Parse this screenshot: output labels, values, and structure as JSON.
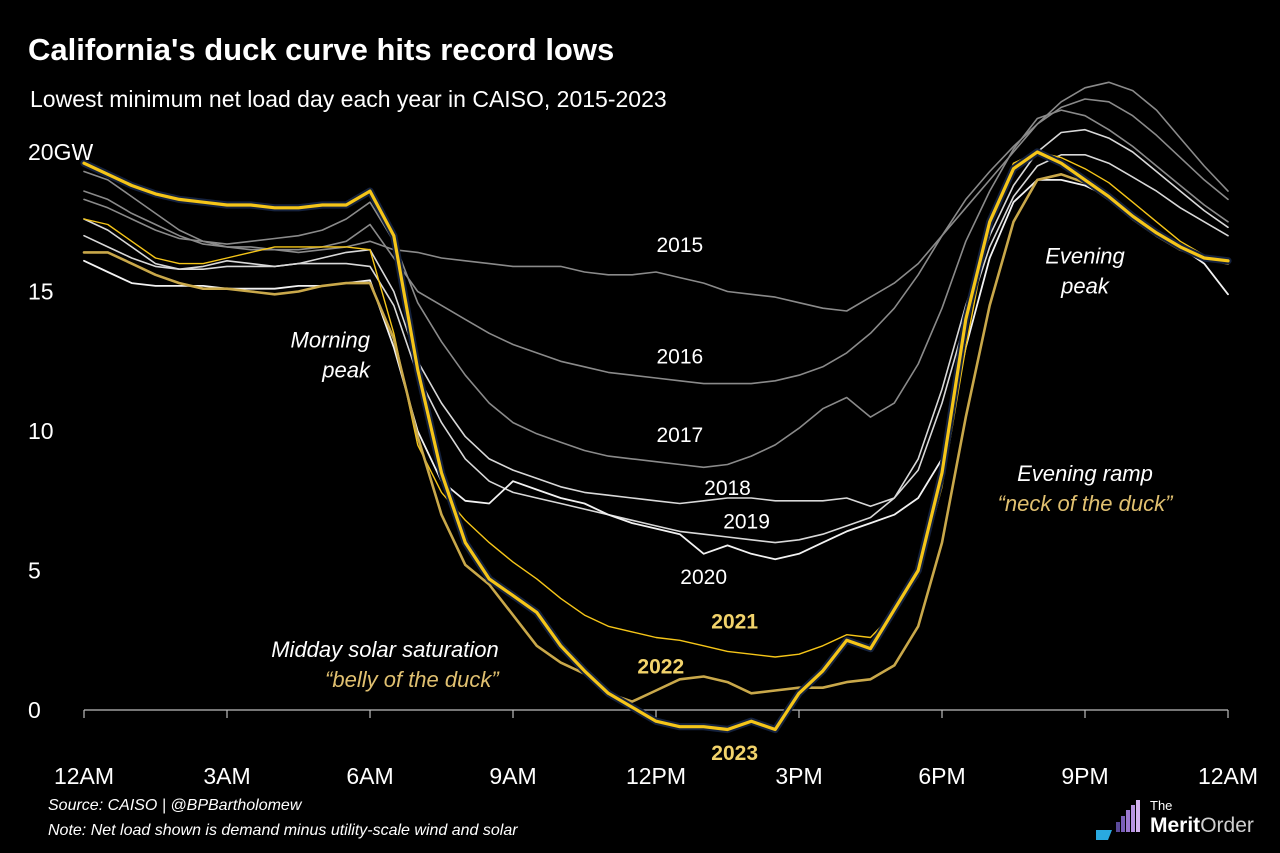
{
  "header": {
    "title": "California's duck curve hits record lows",
    "subtitle": "Lowest minimum net load day each year in CAISO, 2015-2023"
  },
  "footer": {
    "source": "Source: CAISO | @BPBartholomew",
    "note": "Note: Net load shown is demand minus utility-scale wind and solar"
  },
  "logo": {
    "the": "The",
    "merit": "Merit",
    "order": "Order"
  },
  "colors": {
    "background": "#000000",
    "gray_lines": "#8a8a8a",
    "light_lines": "#d8d8d8",
    "yellow": "#f5c518",
    "gold": "#c9a84a",
    "label_yellow": "#f2d36b",
    "label_gold": "#e0c070",
    "navy_outline": "#14213d"
  },
  "chart_data": {
    "type": "line",
    "ylim": [
      0,
      20
    ],
    "xlim": [
      0,
      24
    ],
    "ylabel_top": "20GW",
    "y_ticks": [
      {
        "value": 20,
        "label": "20GW"
      },
      {
        "value": 15,
        "label": "15"
      },
      {
        "value": 10,
        "label": "10"
      },
      {
        "value": 5,
        "label": "5"
      },
      {
        "value": 0,
        "label": "0"
      }
    ],
    "x_ticks": [
      {
        "value": 0,
        "label": "12AM"
      },
      {
        "value": 3,
        "label": "3AM"
      },
      {
        "value": 6,
        "label": "6AM"
      },
      {
        "value": 9,
        "label": "9AM"
      },
      {
        "value": 12,
        "label": "12PM"
      },
      {
        "value": 15,
        "label": "3PM"
      },
      {
        "value": 18,
        "label": "6PM"
      },
      {
        "value": 21,
        "label": "9PM"
      },
      {
        "value": 24,
        "label": "12AM"
      }
    ],
    "series": [
      {
        "name": "2015",
        "style": "gray",
        "label": {
          "text": "2015",
          "x": 12.5,
          "y": 16.7
        },
        "x": [
          0,
          0.5,
          1,
          1.5,
          2,
          2.5,
          3,
          3.5,
          4,
          4.5,
          5,
          5.5,
          6,
          6.5,
          7,
          7.5,
          8,
          8.5,
          9,
          9.5,
          10,
          10.5,
          11,
          11.5,
          12,
          12.5,
          13,
          13.5,
          14,
          14.5,
          15,
          15.5,
          16,
          16.5,
          17,
          17.5,
          18,
          18.5,
          19,
          19.5,
          20,
          20.5,
          21,
          21.5,
          22,
          22.5,
          23,
          23.5,
          24
        ],
        "y": [
          19.3,
          19.0,
          18.4,
          17.8,
          17.2,
          16.8,
          16.6,
          16.5,
          16.5,
          16.4,
          16.5,
          16.6,
          16.8,
          16.5,
          16.4,
          16.2,
          16.1,
          16.0,
          15.9,
          15.9,
          15.9,
          15.7,
          15.6,
          15.6,
          15.7,
          15.5,
          15.3,
          15.0,
          14.9,
          14.8,
          14.6,
          14.4,
          14.3,
          14.8,
          15.3,
          16.0,
          17.0,
          18.0,
          19.0,
          20.0,
          21.0,
          21.8,
          22.3,
          22.5,
          22.2,
          21.5,
          20.5,
          19.5,
          18.6
        ]
      },
      {
        "name": "2016",
        "style": "gray",
        "label": {
          "text": "2016",
          "x": 12.5,
          "y": 12.7
        },
        "x": [
          0,
          0.5,
          1,
          1.5,
          2,
          2.5,
          3,
          3.5,
          4,
          4.5,
          5,
          5.5,
          6,
          6.5,
          7,
          7.5,
          8,
          8.5,
          9,
          9.5,
          10,
          10.5,
          11,
          11.5,
          12,
          12.5,
          13,
          13.5,
          14,
          14.5,
          15,
          15.5,
          16,
          16.5,
          17,
          17.5,
          18,
          18.5,
          19,
          19.5,
          20,
          20.5,
          21,
          21.5,
          22,
          22.5,
          23,
          23.5,
          24
        ],
        "y": [
          18.6,
          18.3,
          17.8,
          17.4,
          17.0,
          16.7,
          16.6,
          16.6,
          16.5,
          16.5,
          16.6,
          16.8,
          17.4,
          16.2,
          15.0,
          14.5,
          14.0,
          13.5,
          13.1,
          12.8,
          12.5,
          12.3,
          12.1,
          12.0,
          11.9,
          11.8,
          11.7,
          11.7,
          11.7,
          11.8,
          12.0,
          12.3,
          12.8,
          13.5,
          14.4,
          15.6,
          17.0,
          18.3,
          19.3,
          20.2,
          21.0,
          21.6,
          21.9,
          21.8,
          21.3,
          20.6,
          19.8,
          19.0,
          18.3
        ]
      },
      {
        "name": "2017",
        "style": "gray",
        "label": {
          "text": "2017",
          "x": 12.5,
          "y": 9.9
        },
        "x": [
          0,
          0.5,
          1,
          1.5,
          2,
          2.5,
          3,
          3.5,
          4,
          4.5,
          5,
          5.5,
          6,
          6.5,
          7,
          7.5,
          8,
          8.5,
          9,
          9.5,
          10,
          10.5,
          11,
          11.5,
          12,
          12.5,
          13,
          13.5,
          14,
          14.5,
          15,
          15.5,
          16,
          16.5,
          17,
          17.5,
          18,
          18.5,
          19,
          19.5,
          20,
          20.5,
          21,
          21.5,
          22,
          22.5,
          23,
          23.5,
          24
        ],
        "y": [
          18.3,
          18.0,
          17.6,
          17.2,
          16.9,
          16.8,
          16.7,
          16.8,
          16.9,
          17.0,
          17.2,
          17.6,
          18.2,
          16.8,
          14.6,
          13.2,
          12.0,
          11.0,
          10.3,
          9.9,
          9.6,
          9.3,
          9.1,
          9.0,
          8.9,
          8.8,
          8.7,
          8.8,
          9.1,
          9.5,
          10.1,
          10.8,
          11.2,
          10.5,
          11.0,
          12.4,
          14.4,
          16.8,
          18.6,
          20.1,
          21.2,
          21.5,
          21.3,
          20.8,
          20.2,
          19.5,
          18.8,
          18.1,
          17.5
        ]
      },
      {
        "name": "2018",
        "style": "light",
        "label": {
          "text": "2018",
          "x": 13.5,
          "y": 8.0
        },
        "x": [
          0,
          0.5,
          1,
          1.5,
          2,
          2.5,
          3,
          3.5,
          4,
          4.5,
          5,
          5.5,
          6,
          6.5,
          7,
          7.5,
          8,
          8.5,
          9,
          9.5,
          10,
          10.5,
          11,
          11.5,
          12,
          12.5,
          13,
          13.5,
          14,
          14.5,
          15,
          15.5,
          16,
          16.5,
          17,
          17.5,
          18,
          18.5,
          19,
          19.5,
          20,
          20.5,
          21,
          21.5,
          22,
          22.5,
          23,
          23.5,
          24
        ],
        "y": [
          17.6,
          17.2,
          16.6,
          16.0,
          15.8,
          15.9,
          16.1,
          16.0,
          15.9,
          16.0,
          16.2,
          16.4,
          16.5,
          15.0,
          12.5,
          11.0,
          9.8,
          9.0,
          8.6,
          8.3,
          8.0,
          7.8,
          7.7,
          7.6,
          7.5,
          7.4,
          7.5,
          7.6,
          7.6,
          7.5,
          7.5,
          7.5,
          7.6,
          7.3,
          7.6,
          9.0,
          11.5,
          14.5,
          17.0,
          18.8,
          20.0,
          20.7,
          20.8,
          20.5,
          20.0,
          19.3,
          18.6,
          17.9,
          17.3
        ]
      },
      {
        "name": "2019",
        "style": "light",
        "label": {
          "text": "2019",
          "x": 13.9,
          "y": 6.8
        },
        "x": [
          0,
          0.5,
          1,
          1.5,
          2,
          2.5,
          3,
          3.5,
          4,
          4.5,
          5,
          5.5,
          6,
          6.5,
          7,
          7.5,
          8,
          8.5,
          9,
          9.5,
          10,
          10.5,
          11,
          11.5,
          12,
          12.5,
          13,
          13.5,
          14,
          14.5,
          15,
          15.5,
          16,
          16.5,
          17,
          17.5,
          18,
          18.5,
          19,
          19.5,
          20,
          20.5,
          21,
          21.5,
          22,
          22.5,
          23,
          23.5,
          24
        ],
        "y": [
          17.0,
          16.6,
          16.2,
          15.9,
          15.8,
          15.8,
          15.9,
          15.9,
          15.9,
          16.0,
          16.0,
          16.0,
          15.9,
          14.5,
          12.0,
          10.3,
          9.0,
          8.2,
          7.8,
          7.6,
          7.4,
          7.2,
          7.0,
          6.8,
          6.6,
          6.4,
          6.3,
          6.2,
          6.1,
          6.0,
          6.1,
          6.3,
          6.6,
          6.9,
          7.6,
          8.6,
          11.0,
          14.0,
          16.6,
          18.4,
          19.5,
          19.9,
          19.9,
          19.6,
          19.1,
          18.6,
          18.0,
          17.5,
          17.0
        ]
      },
      {
        "name": "2020",
        "style": "white",
        "label": {
          "text": "2020",
          "x": 13.0,
          "y": 4.8
        },
        "x": [
          0,
          0.5,
          1,
          1.5,
          2,
          2.5,
          3,
          3.5,
          4,
          4.5,
          5,
          5.5,
          6,
          6.5,
          7,
          7.5,
          8,
          8.5,
          9,
          9.5,
          10,
          10.5,
          11,
          11.5,
          12,
          12.5,
          13,
          13.5,
          14,
          14.5,
          15,
          15.5,
          16,
          16.5,
          17,
          17.5,
          18,
          18.5,
          19,
          19.5,
          20,
          20.5,
          21,
          21.5,
          22,
          22.5,
          23,
          23.5,
          24
        ],
        "y": [
          16.1,
          15.7,
          15.3,
          15.2,
          15.2,
          15.2,
          15.1,
          15.1,
          15.1,
          15.2,
          15.2,
          15.3,
          15.4,
          13.0,
          10.0,
          8.2,
          7.5,
          7.4,
          8.2,
          7.9,
          7.6,
          7.4,
          7.0,
          6.7,
          6.5,
          6.3,
          5.6,
          5.9,
          5.6,
          5.4,
          5.6,
          6.0,
          6.4,
          6.7,
          7.0,
          7.6,
          9.0,
          13.0,
          16.2,
          18.2,
          19.0,
          19.0,
          18.8,
          18.4,
          17.8,
          17.2,
          16.6,
          16.0,
          14.9
        ]
      },
      {
        "name": "2021",
        "style": "yellow_thin",
        "label": {
          "text": "2021",
          "x": 13.65,
          "y": 3.2
        },
        "x": [
          0,
          0.5,
          1,
          1.5,
          2,
          2.5,
          3,
          3.5,
          4,
          4.5,
          5,
          5.5,
          6,
          6.5,
          7,
          7.5,
          8,
          8.5,
          9,
          9.5,
          10,
          10.5,
          11,
          11.5,
          12,
          12.5,
          13,
          13.5,
          14,
          14.5,
          15,
          15.5,
          16,
          16.5,
          17,
          17.5,
          18,
          18.5,
          19,
          19.5,
          20,
          20.5,
          21,
          21.5,
          22,
          22.5,
          23,
          23.5,
          24
        ],
        "y": [
          17.6,
          17.4,
          16.8,
          16.2,
          16.0,
          16.0,
          16.2,
          16.4,
          16.6,
          16.6,
          16.6,
          16.6,
          16.5,
          13.5,
          9.5,
          7.8,
          6.8,
          6.0,
          5.3,
          4.7,
          4.0,
          3.4,
          3.0,
          2.8,
          2.6,
          2.5,
          2.3,
          2.1,
          2.0,
          1.9,
          2.0,
          2.3,
          2.7,
          2.6,
          3.5,
          4.8,
          8.0,
          13.0,
          17.5,
          19.6,
          20.0,
          19.8,
          19.4,
          18.9,
          18.2,
          17.5,
          16.8,
          16.3,
          16.0
        ]
      },
      {
        "name": "2022",
        "style": "gold",
        "label": {
          "text": "2022",
          "x": 12.1,
          "y": 1.6
        },
        "x": [
          0,
          0.5,
          1,
          1.5,
          2,
          2.5,
          3,
          3.5,
          4,
          4.5,
          5,
          5.5,
          6,
          6.5,
          7,
          7.5,
          8,
          8.5,
          9,
          9.5,
          10,
          10.5,
          11,
          11.5,
          12,
          12.5,
          13,
          13.5,
          14,
          14.5,
          15,
          15.5,
          16,
          16.5,
          17,
          17.5,
          18,
          18.5,
          19,
          19.5,
          20,
          20.5,
          21,
          21.5,
          22,
          22.5,
          23,
          23.5,
          24
        ],
        "y": [
          16.4,
          16.4,
          16.0,
          15.6,
          15.3,
          15.1,
          15.1,
          15.0,
          14.9,
          15.0,
          15.2,
          15.3,
          15.3,
          13.3,
          9.8,
          7.0,
          5.2,
          4.5,
          3.4,
          2.3,
          1.7,
          1.3,
          0.6,
          0.3,
          0.7,
          1.1,
          1.2,
          1.0,
          0.6,
          0.7,
          0.8,
          0.8,
          1.0,
          1.1,
          1.6,
          3.0,
          6.0,
          10.5,
          14.5,
          17.5,
          19.0,
          19.2,
          18.9,
          18.3,
          17.6,
          17.0,
          16.5,
          16.2,
          16.0
        ]
      },
      {
        "name": "2023",
        "style": "yellow_bold",
        "label": {
          "text": "2023",
          "x": 13.65,
          "y": -1.5
        },
        "x": [
          0,
          0.5,
          1,
          1.5,
          2,
          2.5,
          3,
          3.5,
          4,
          4.5,
          5,
          5.5,
          6,
          6.5,
          7,
          7.5,
          8,
          8.5,
          9,
          9.5,
          10,
          10.5,
          11,
          11.5,
          12,
          12.5,
          13,
          13.5,
          14,
          14.5,
          15,
          15.5,
          16,
          16.5,
          17,
          17.5,
          18,
          18.5,
          19,
          19.5,
          20,
          20.5,
          21,
          21.5,
          22,
          22.5,
          23,
          23.5,
          24
        ],
        "y": [
          19.6,
          19.2,
          18.8,
          18.5,
          18.3,
          18.2,
          18.1,
          18.1,
          18.0,
          18.0,
          18.1,
          18.1,
          18.6,
          17.0,
          12.2,
          8.5,
          6.0,
          4.7,
          4.1,
          3.5,
          2.3,
          1.4,
          0.6,
          0.1,
          -0.4,
          -0.6,
          -0.6,
          -0.7,
          -0.4,
          -0.7,
          0.6,
          1.4,
          2.5,
          2.2,
          3.6,
          5.0,
          8.5,
          14.0,
          17.5,
          19.4,
          20.0,
          19.6,
          19.0,
          18.4,
          17.7,
          17.1,
          16.6,
          16.2,
          16.1
        ]
      }
    ],
    "annotations": [
      {
        "lines": [
          "Morning",
          "peak"
        ],
        "x": 6.0,
        "y": 13.0,
        "anchor": "end",
        "color": "white"
      },
      {
        "lines": [
          "Evening",
          "peak"
        ],
        "x": 21.0,
        "y": 16.0,
        "anchor": "middle",
        "color": "white"
      },
      {
        "lines": [
          "Evening ramp",
          "“neck of the duck”"
        ],
        "x": 21.0,
        "y": 8.2,
        "anchor": "middle",
        "color": "mixed"
      },
      {
        "lines": [
          "Midday solar saturation",
          "“belly of the duck”"
        ],
        "x": 8.7,
        "y": 1.9,
        "anchor": "end",
        "color": "mixed"
      }
    ]
  }
}
